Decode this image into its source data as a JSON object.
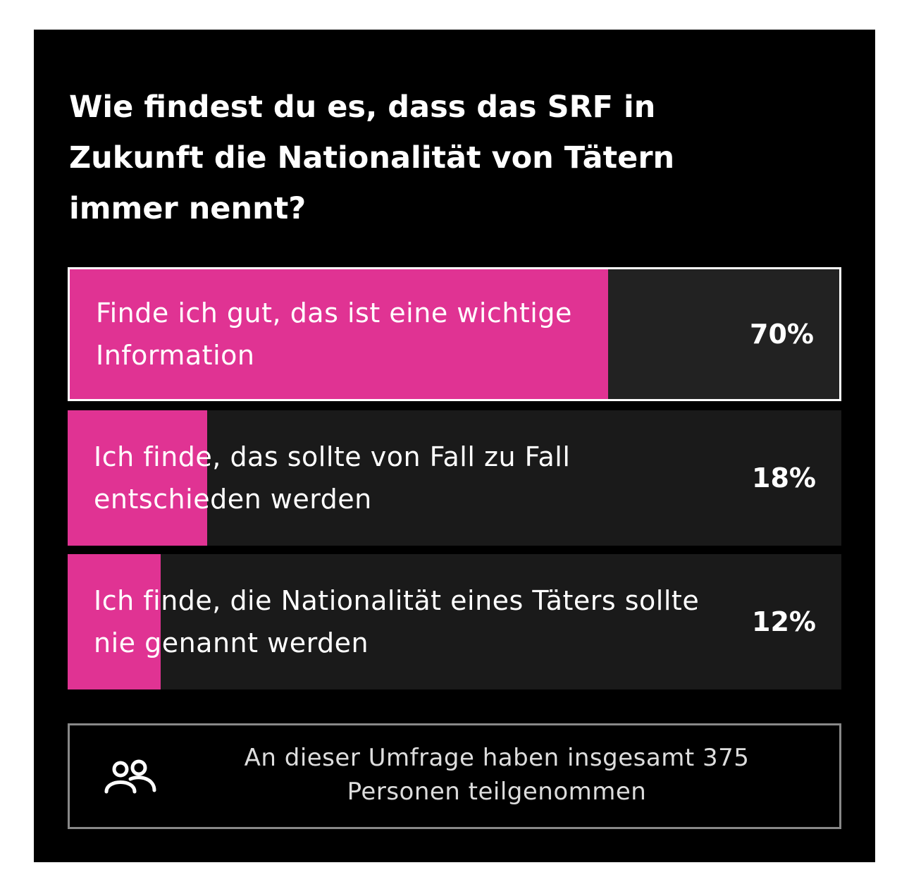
{
  "poll": {
    "question": "Wie findest du es, dass das SRF in Zukunft die Nationalität von Tätern immer nennt?",
    "accent_color": "#e03393",
    "options": [
      {
        "label": "Finde ich gut, das ist eine wichtige Information",
        "percent_label": "70%",
        "percent": 70,
        "selected": true
      },
      {
        "label": "Ich finde, das sollte von Fall zu Fall entschieden werden",
        "percent_label": "18%",
        "percent": 18,
        "selected": false
      },
      {
        "label": "Ich finde, die Nationalität eines Täters sollte nie genannt werden",
        "percent_label": "12%",
        "percent": 12,
        "selected": false
      }
    ],
    "footer": {
      "icon": "people-icon",
      "text": "An dieser Umfrage haben insgesamt 375 Personen teilgenommen"
    }
  }
}
